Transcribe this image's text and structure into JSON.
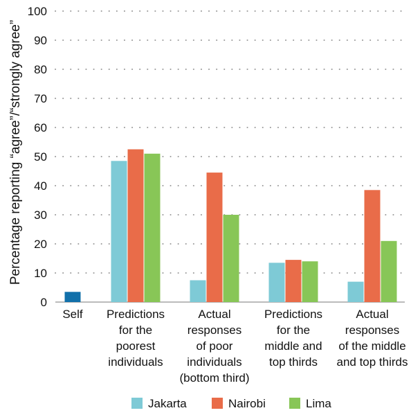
{
  "chart_data": {
    "type": "bar",
    "title": "",
    "xlabel": "",
    "ylabel": "Percentage reporting “agree”/“strongly agree”",
    "ylim": [
      0,
      100
    ],
    "yticks": [
      0,
      10,
      20,
      30,
      40,
      50,
      60,
      70,
      80,
      90,
      100
    ],
    "grid": "dotted-horizontal",
    "legend_position": "bottom",
    "categories": [
      "Self",
      "Predictions for the poorest individuals",
      "Actual responses of poor individuals (bottom third)",
      "Predictions for the middle and top thirds",
      "Actual responses of the middle and top thirds"
    ],
    "category_lines": [
      [
        "Self"
      ],
      [
        "Predictions",
        "for the",
        "poorest",
        "individuals"
      ],
      [
        "Actual",
        "responses",
        "of poor",
        "individuals",
        "(bottom third)"
      ],
      [
        "Predictions",
        "for the",
        "middle and",
        "top thirds"
      ],
      [
        "Actual",
        "responses",
        "of the middle",
        "and top thirds"
      ]
    ],
    "self_bar": {
      "category": "Self",
      "value": 3.5,
      "color": "#1170aa"
    },
    "series": [
      {
        "name": "Jakarta",
        "color": "#7ecad6",
        "values": [
          null,
          48.5,
          7.5,
          13.5,
          7.0
        ]
      },
      {
        "name": "Nairobi",
        "color": "#e96c49",
        "values": [
          null,
          52.5,
          44.5,
          14.5,
          38.5
        ]
      },
      {
        "name": "Lima",
        "color": "#88c657",
        "values": [
          null,
          51.0,
          30.0,
          14.0,
          21.0
        ]
      }
    ]
  }
}
